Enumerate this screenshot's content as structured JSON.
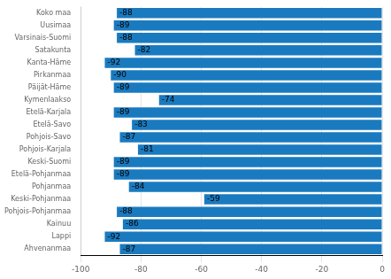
{
  "chart_data": {
    "type": "bar",
    "orientation": "horizontal",
    "categories": [
      "Ahvenanmaa",
      "Lappi",
      "Kainuu",
      "Pohjois-Pohjanmaa",
      "Keski-Pohjanmaa",
      "Pohjanmaa",
      "Etelä-Pohjanmaa",
      "Keski-Suomi",
      "Pohjois-Karjala",
      "Pohjois-Savo",
      "Etelä-Savo",
      "Etelä-Karjala",
      "Kymenlaakso",
      "Päijät-Häme",
      "Pirkanmaa",
      "Kanta-Häme",
      "Satakunta",
      "Varsinais-Suomi",
      "Uusimaa",
      "Koko maa"
    ],
    "values": [
      -87,
      -92,
      -86,
      -88,
      -59,
      -84,
      -89,
      -89,
      -81,
      -87,
      -83,
      -89,
      -74,
      -89,
      -90,
      -92,
      -82,
      -88,
      -89,
      -88
    ],
    "color": "#1a7abf",
    "xlim": [
      -100,
      0
    ],
    "xticks": [
      -100,
      -80,
      -60,
      -40,
      -20,
      0
    ],
    "grid": true,
    "data_labels": true
  }
}
